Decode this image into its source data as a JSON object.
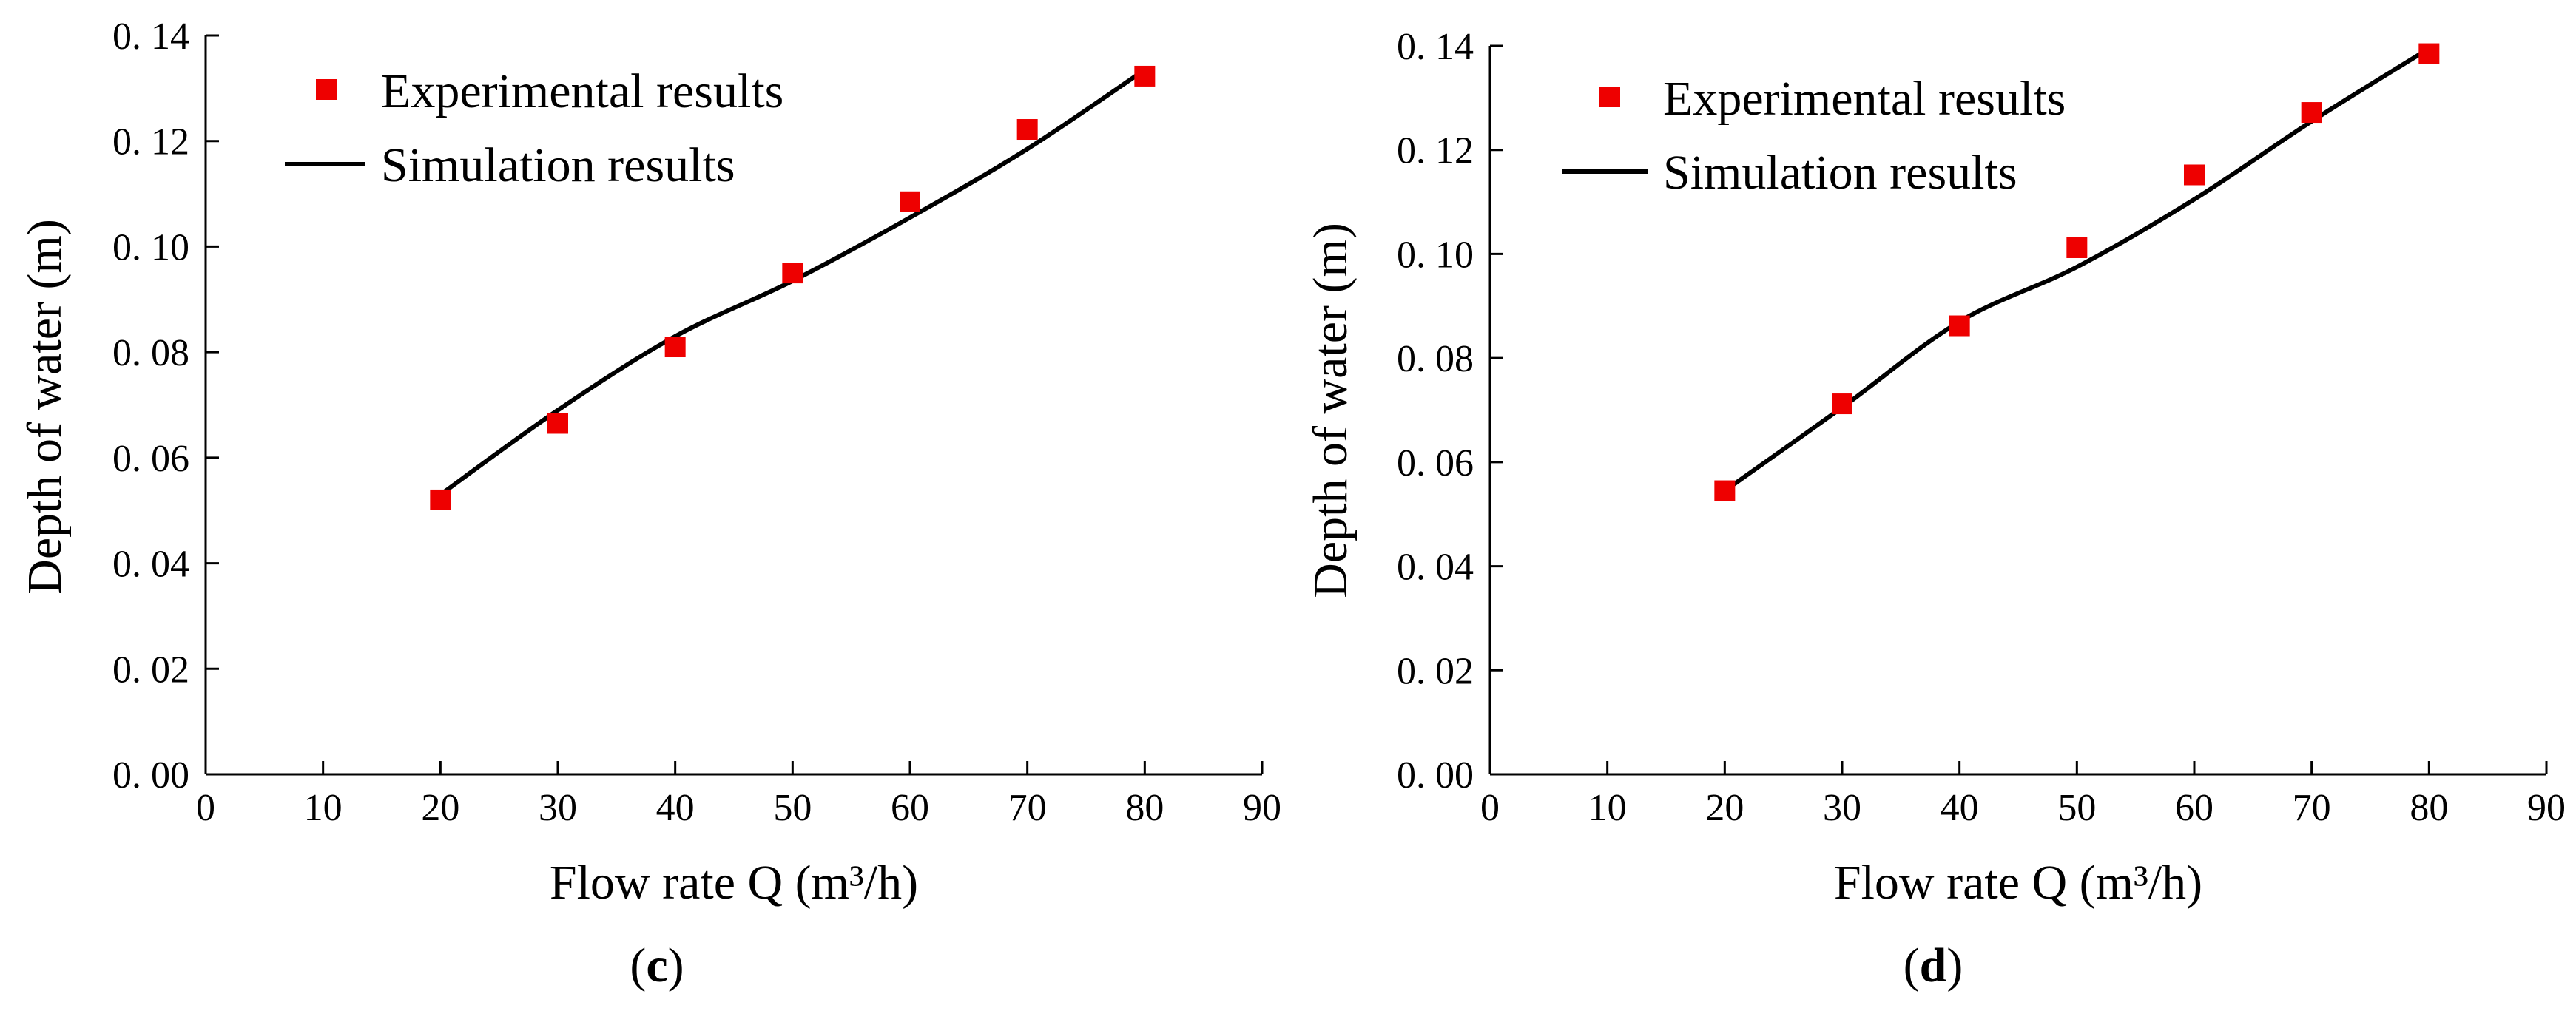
{
  "chart_data": [
    {
      "type": "line",
      "panel_label": "c",
      "xlabel": "Flow rate Q (m³/h)",
      "ylabel": "Depth of water (m)",
      "xlim": [
        0,
        90
      ],
      "ylim": [
        0,
        0.14
      ],
      "x_ticks": [
        "0",
        "10",
        "20",
        "30",
        "40",
        "50",
        "60",
        "70",
        "80",
        "90"
      ],
      "y_ticks": [
        "0. 00",
        "0. 02",
        "0. 04",
        "0. 06",
        "0. 08",
        "0. 10",
        "0. 12",
        "0. 14"
      ],
      "legend": "top-left",
      "series": [
        {
          "name": "Experimental results",
          "kind": "scatter",
          "color": "#ee0000",
          "x": [
            20,
            30,
            40,
            50,
            60,
            70,
            80
          ],
          "y": [
            0.052,
            0.0665,
            0.081,
            0.095,
            0.1085,
            0.1222,
            0.1323
          ]
        },
        {
          "name": "Simulation results",
          "kind": "line",
          "color": "#000000",
          "x": [
            20,
            30,
            40,
            50,
            60,
            70,
            80
          ],
          "y": [
            0.053,
            0.069,
            0.083,
            0.0935,
            0.1055,
            0.1185,
            0.1335
          ]
        }
      ]
    },
    {
      "type": "line",
      "panel_label": "d",
      "xlabel": "Flow rate Q (m³/h)",
      "ylabel": "Depth of water (m)",
      "xlim": [
        0,
        90
      ],
      "ylim": [
        0,
        0.14
      ],
      "x_ticks": [
        "0",
        "10",
        "20",
        "30",
        "40",
        "50",
        "60",
        "70",
        "80",
        "90"
      ],
      "y_ticks": [
        "0. 00",
        "0. 02",
        "0. 04",
        "0. 06",
        "0. 08",
        "0. 10",
        "0. 12",
        "0. 14"
      ],
      "legend": "top-left",
      "series": [
        {
          "name": "Experimental results",
          "kind": "scatter",
          "color": "#ee0000",
          "x": [
            20,
            30,
            40,
            50,
            60,
            70,
            80
          ],
          "y": [
            0.0545,
            0.0712,
            0.0862,
            0.1012,
            0.1152,
            0.1272,
            0.1385
          ]
        },
        {
          "name": "Simulation results",
          "kind": "line",
          "color": "#000000",
          "x": [
            20,
            30,
            40,
            50,
            60,
            70,
            80
          ],
          "y": [
            0.0545,
            0.0705,
            0.087,
            0.0975,
            0.1105,
            0.1255,
            0.1395
          ]
        }
      ]
    }
  ]
}
